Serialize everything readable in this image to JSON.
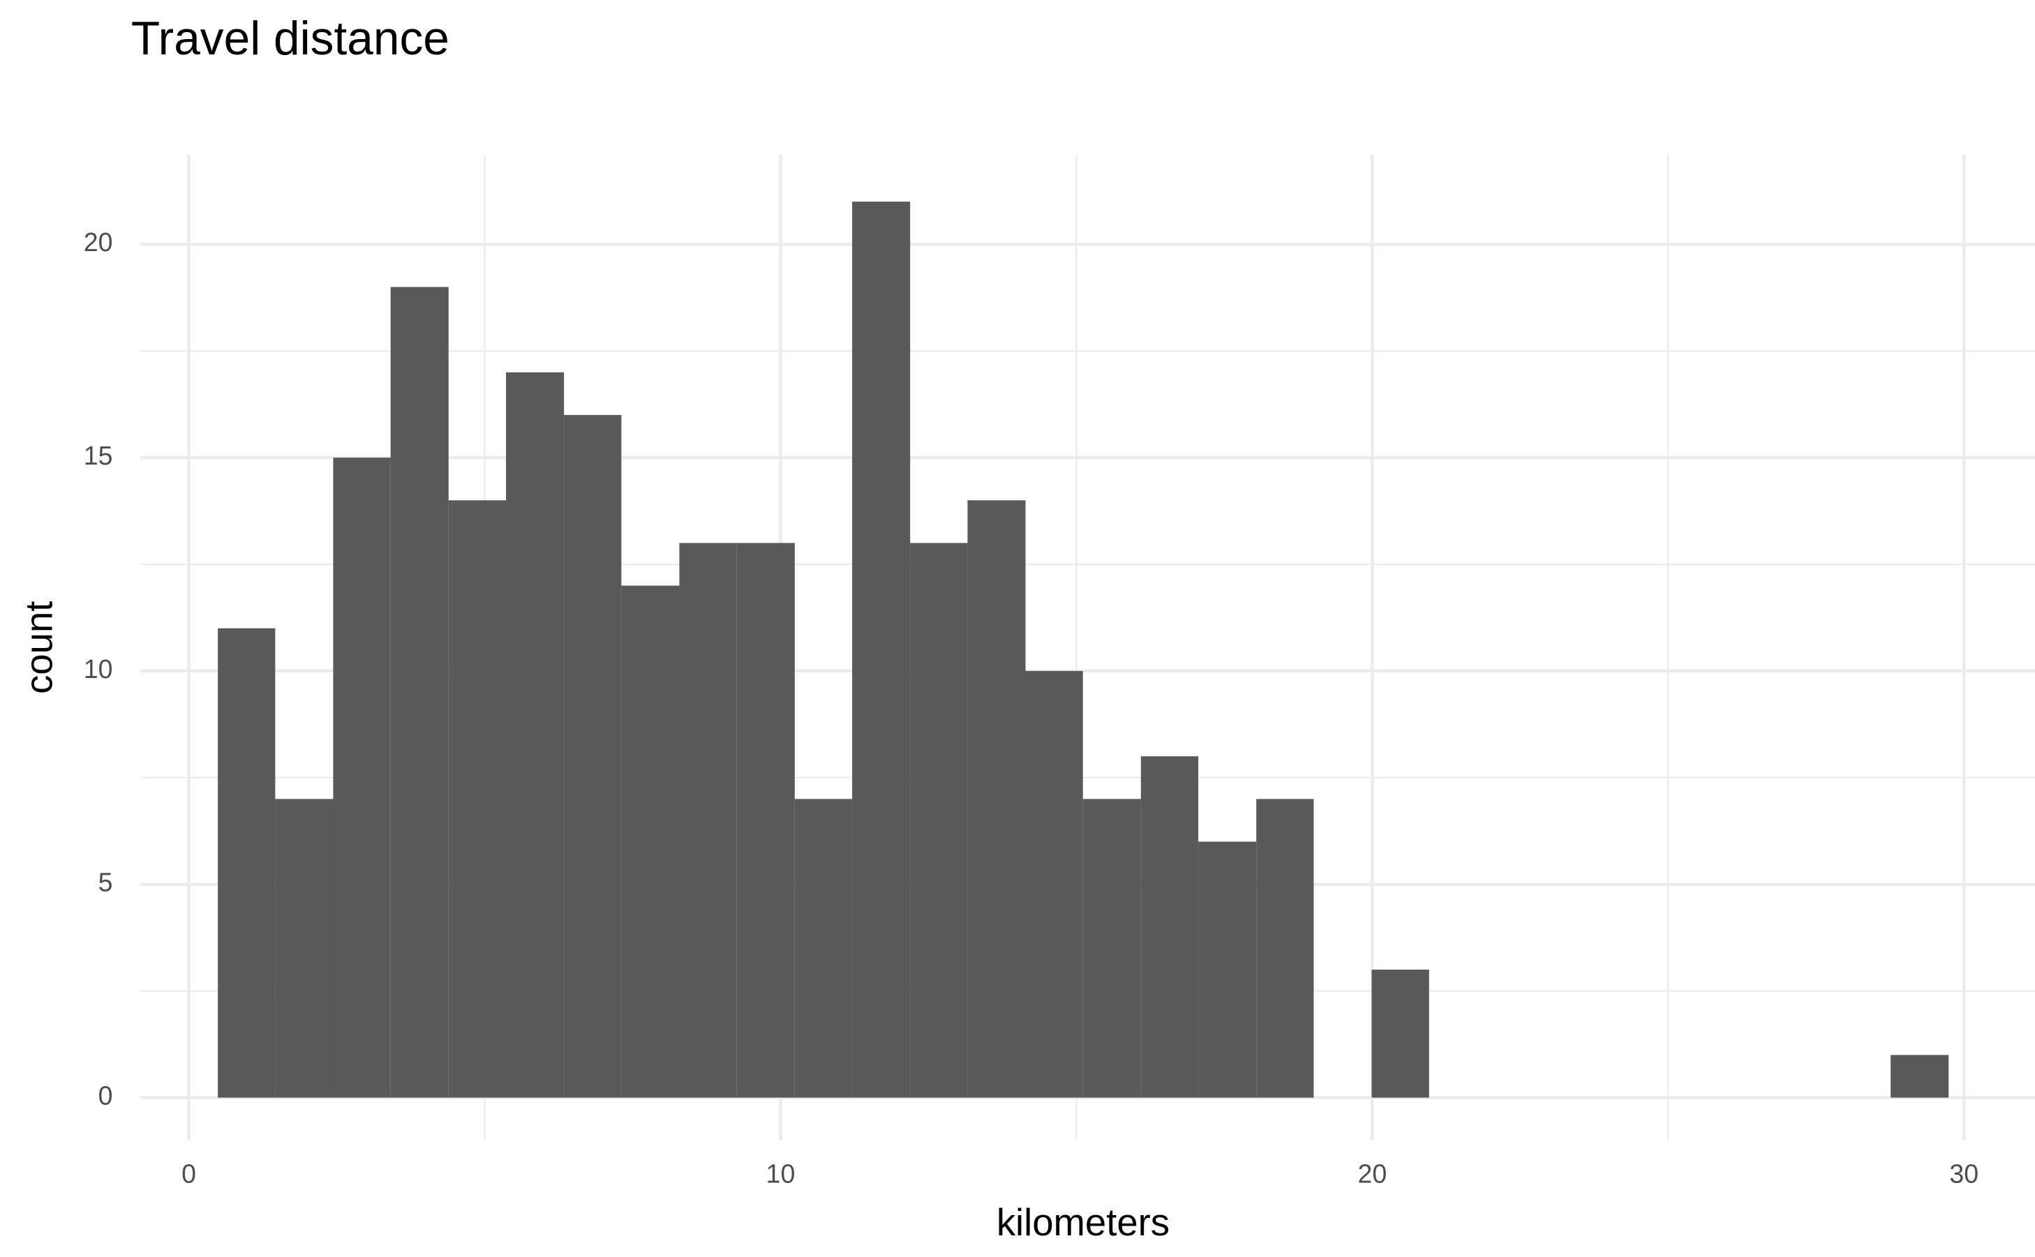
{
  "chart_data": {
    "type": "histogram",
    "title": "Travel distance",
    "x_label": "kilometers",
    "y_label": "count",
    "bins": [
      0.49,
      1.46,
      2.44,
      3.41,
      4.39,
      5.36,
      6.34,
      7.31,
      8.29,
      9.26,
      10.24,
      11.21,
      12.19,
      13.16,
      14.14,
      15.11,
      16.09,
      17.06,
      18.04,
      19.01,
      19.99,
      20.96,
      21.94,
      22.91,
      23.89,
      24.86,
      25.84,
      26.81,
      27.79,
      28.76,
      29.74
    ],
    "values": [
      11,
      7,
      15,
      19,
      14,
      17,
      16,
      12,
      13,
      13,
      7,
      21,
      13,
      14,
      10,
      7,
      8,
      6,
      7,
      0,
      3,
      0,
      0,
      0,
      0,
      0,
      0,
      0,
      0,
      1
    ],
    "color": "#595959",
    "xlim": [
      -0.82,
      31.2
    ],
    "ylim": [
      -1,
      22.1
    ],
    "xticks": [
      0,
      10,
      20,
      30
    ],
    "yticks": [
      0,
      5,
      10,
      15,
      20
    ],
    "grid": true,
    "minor_grid": true
  }
}
